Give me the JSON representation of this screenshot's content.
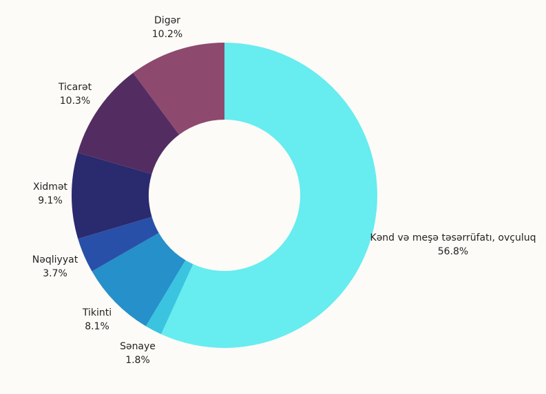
{
  "chart_data": {
    "type": "pie",
    "title": "",
    "donut": true,
    "legend": "none",
    "slices": [
      {
        "name": "Kənd və meşə təsərrüfatı, ovçuluq",
        "value": 56.8,
        "label": "56.8%",
        "color": "#67ecf0"
      },
      {
        "name": "Sənaye",
        "value": 1.8,
        "label": "1.8%",
        "color": "#3ac4e0"
      },
      {
        "name": "Tikinti",
        "value": 8.1,
        "label": "8.1%",
        "color": "#2590c9"
      },
      {
        "name": "Nəqliyyat",
        "value": 3.7,
        "label": "3.7%",
        "color": "#2950a8"
      },
      {
        "name": "Xidmət",
        "value": 9.1,
        "label": "9.1%",
        "color": "#2a2a6e"
      },
      {
        "name": "Ticarət",
        "value": 10.3,
        "label": "10.3%",
        "color": "#532d62"
      },
      {
        "name": "Digər",
        "value": 10.2,
        "label": "10.2%",
        "color": "#8e496f"
      }
    ]
  }
}
